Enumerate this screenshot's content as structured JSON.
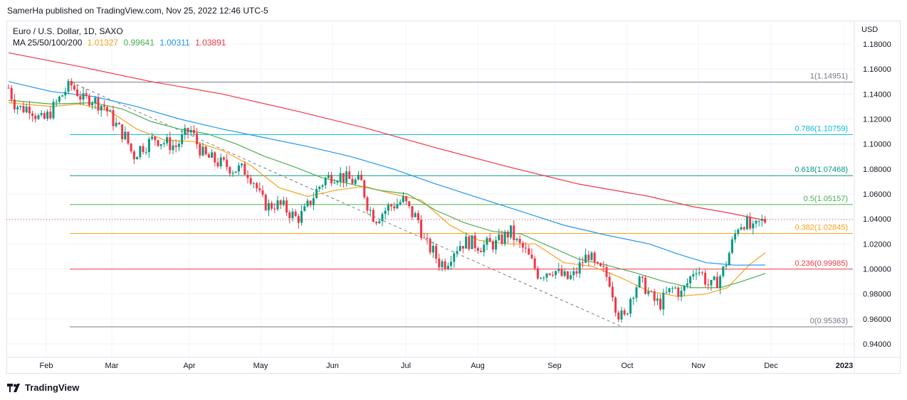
{
  "header": {
    "text": "SamerHa published on TradingView.com, Nov 25, 2022 12:46 UTC-5"
  },
  "legend": {
    "symbol": "Euro / U.S. Dollar, 1D, SAXO",
    "ma_label": "MA 25/50/100/200",
    "ma_values": [
      {
        "value": "1.01327",
        "color": "#f7a21b"
      },
      {
        "value": "0.99641",
        "color": "#4caf50"
      },
      {
        "value": "1.00311",
        "color": "#2196f3"
      },
      {
        "value": "1.03891",
        "color": "#f23645"
      }
    ]
  },
  "footer": {
    "brand": "TradingView"
  },
  "chart_data": {
    "type": "candlestick",
    "title": "Euro / U.S. Dollar, 1D, SAXO",
    "currency": "USD",
    "ylim": [
      0.93,
      1.19
    ],
    "y_ticks": [
      "1.18000",
      "1.16000",
      "1.14000",
      "1.12000",
      "1.10000",
      "1.08000",
      "1.06000",
      "1.04000",
      "1.02000",
      "1.00000",
      "0.98000",
      "0.96000",
      "0.94000"
    ],
    "x_ticks": [
      "Feb",
      "Mar",
      "Apr",
      "May",
      "Jun",
      "Jul",
      "Aug",
      "Sep",
      "Oct",
      "Nov",
      "Dec",
      "2023"
    ],
    "last_price": 1.0395,
    "fib_levels": [
      {
        "label": "1(1.14951)",
        "value": 1.14951,
        "color": "#787b86"
      },
      {
        "label": "0.786(1.10759)",
        "value": 1.10759,
        "color": "#00bcd4"
      },
      {
        "label": "0.618(1.07468)",
        "value": 1.07468,
        "color": "#089981"
      },
      {
        "label": "0.5(1.05157)",
        "value": 1.05157,
        "color": "#4caf50"
      },
      {
        "label": "0.382(1.02845)",
        "value": 1.02845,
        "color": "#f7a21b"
      },
      {
        "label": "0.236(0.99985)",
        "value": 0.99985,
        "color": "#f23645"
      },
      {
        "label": "0(0.95363)",
        "value": 0.95363,
        "color": "#787b86"
      }
    ],
    "price_path": [
      [
        0,
        1.145
      ],
      [
        8,
        1.133
      ],
      [
        18,
        1.128
      ],
      [
        30,
        1.13
      ],
      [
        40,
        1.122
      ],
      [
        48,
        1.118
      ],
      [
        58,
        1.125
      ],
      [
        70,
        1.135
      ],
      [
        80,
        1.143
      ],
      [
        88,
        1.147
      ],
      [
        96,
        1.142
      ],
      [
        105,
        1.135
      ],
      [
        115,
        1.137
      ],
      [
        125,
        1.133
      ],
      [
        135,
        1.13
      ],
      [
        145,
        1.12
      ],
      [
        155,
        1.112
      ],
      [
        165,
        1.105
      ],
      [
        175,
        1.09
      ],
      [
        185,
        1.097
      ],
      [
        195,
        1.1
      ],
      [
        205,
        1.105
      ],
      [
        215,
        1.102
      ],
      [
        225,
        1.1
      ],
      [
        235,
        1.098
      ],
      [
        245,
        1.105
      ],
      [
        255,
        1.112
      ],
      [
        265,
        1.1
      ],
      [
        275,
        1.09
      ],
      [
        285,
        1.088
      ],
      [
        295,
        1.085
      ],
      [
        305,
        1.083
      ],
      [
        315,
        1.08
      ],
      [
        325,
        1.08
      ],
      [
        335,
        1.078
      ],
      [
        345,
        1.07
      ],
      [
        355,
        1.055
      ],
      [
        365,
        1.05
      ],
      [
        375,
        1.052
      ],
      [
        385,
        1.05
      ],
      [
        395,
        1.045
      ],
      [
        405,
        1.04
      ],
      [
        415,
        1.045
      ],
      [
        425,
        1.055
      ],
      [
        435,
        1.065
      ],
      [
        445,
        1.072
      ],
      [
        455,
        1.075
      ],
      [
        465,
        1.075
      ],
      [
        475,
        1.072
      ],
      [
        485,
        1.07
      ],
      [
        495,
        1.07
      ],
      [
        505,
        1.05
      ],
      [
        515,
        1.04
      ],
      [
        525,
        1.045
      ],
      [
        535,
        1.05
      ],
      [
        545,
        1.052
      ],
      [
        555,
        1.055
      ],
      [
        565,
        1.045
      ],
      [
        575,
        1.04
      ],
      [
        585,
        1.02
      ],
      [
        595,
        1.015
      ],
      [
        605,
        1.005
      ],
      [
        615,
        1.005
      ],
      [
        625,
        1.015
      ],
      [
        635,
        1.02
      ],
      [
        645,
        1.022
      ],
      [
        655,
        1.02
      ],
      [
        665,
        1.018
      ],
      [
        675,
        1.02
      ],
      [
        685,
        1.02
      ],
      [
        695,
        1.025
      ],
      [
        705,
        1.03
      ],
      [
        715,
        1.02
      ],
      [
        725,
        1.015
      ],
      [
        735,
        1.005
      ],
      [
        745,
        0.995
      ],
      [
        755,
        0.998
      ],
      [
        765,
        1.0
      ],
      [
        775,
        0.995
      ],
      [
        785,
        0.992
      ],
      [
        795,
        0.995
      ],
      [
        805,
        1.005
      ],
      [
        815,
        1.012
      ],
      [
        825,
        1.0
      ],
      [
        835,
        0.998
      ],
      [
        845,
        0.99
      ],
      [
        855,
        0.965
      ],
      [
        865,
        0.96
      ],
      [
        875,
        0.98
      ],
      [
        885,
        0.99
      ],
      [
        895,
        0.985
      ],
      [
        905,
        0.975
      ],
      [
        915,
        0.972
      ],
      [
        925,
        0.98
      ],
      [
        935,
        0.985
      ],
      [
        945,
        0.98
      ],
      [
        955,
        0.99
      ],
      [
        965,
        1.002
      ],
      [
        975,
        0.995
      ],
      [
        985,
        0.985
      ],
      [
        995,
        0.99
      ],
      [
        1005,
        1.0
      ],
      [
        1015,
        1.018
      ],
      [
        1025,
        1.035
      ],
      [
        1035,
        1.038
      ],
      [
        1045,
        1.03
      ],
      [
        1055,
        1.037
      ],
      [
        1065,
        1.0395
      ]
    ],
    "series": [
      {
        "name": "MA 25",
        "color": "#f7a21b",
        "values": [
          [
            0,
            1.133
          ],
          [
            60,
            1.13
          ],
          [
            100,
            1.132
          ],
          [
            140,
            1.127
          ],
          [
            180,
            1.112
          ],
          [
            220,
            1.103
          ],
          [
            260,
            1.102
          ],
          [
            300,
            1.095
          ],
          [
            340,
            1.083
          ],
          [
            380,
            1.065
          ],
          [
            420,
            1.058
          ],
          [
            460,
            1.063
          ],
          [
            500,
            1.066
          ],
          [
            540,
            1.06
          ],
          [
            580,
            1.055
          ],
          [
            620,
            1.035
          ],
          [
            660,
            1.023
          ],
          [
            700,
            1.02
          ],
          [
            740,
            1.02
          ],
          [
            780,
            1.005
          ],
          [
            820,
            1.002
          ],
          [
            860,
            0.993
          ],
          [
            900,
            0.982
          ],
          [
            940,
            0.978
          ],
          [
            980,
            0.98
          ],
          [
            1010,
            0.985
          ],
          [
            1040,
            1.003
          ],
          [
            1063,
            1.013
          ]
        ]
      },
      {
        "name": "MA 50",
        "color": "#4caf50",
        "values": [
          [
            0,
            1.135
          ],
          [
            60,
            1.132
          ],
          [
            120,
            1.133
          ],
          [
            160,
            1.128
          ],
          [
            200,
            1.118
          ],
          [
            240,
            1.112
          ],
          [
            280,
            1.108
          ],
          [
            320,
            1.1
          ],
          [
            360,
            1.09
          ],
          [
            400,
            1.082
          ],
          [
            440,
            1.073
          ],
          [
            480,
            1.068
          ],
          [
            520,
            1.063
          ],
          [
            560,
            1.06
          ],
          [
            600,
            1.047
          ],
          [
            640,
            1.037
          ],
          [
            680,
            1.03
          ],
          [
            720,
            1.028
          ],
          [
            760,
            1.018
          ],
          [
            800,
            1.008
          ],
          [
            840,
            1.003
          ],
          [
            880,
            0.997
          ],
          [
            920,
            0.99
          ],
          [
            960,
            0.985
          ],
          [
            1000,
            0.985
          ],
          [
            1030,
            0.99
          ],
          [
            1063,
            0.99641
          ]
        ]
      },
      {
        "name": "MA 100",
        "color": "#2196f3",
        "values": [
          [
            0,
            1.15
          ],
          [
            60,
            1.142
          ],
          [
            120,
            1.138
          ],
          [
            180,
            1.13
          ],
          [
            240,
            1.12
          ],
          [
            300,
            1.112
          ],
          [
            360,
            1.105
          ],
          [
            420,
            1.098
          ],
          [
            480,
            1.09
          ],
          [
            540,
            1.08
          ],
          [
            600,
            1.068
          ],
          [
            660,
            1.057
          ],
          [
            720,
            1.046
          ],
          [
            780,
            1.035
          ],
          [
            840,
            1.027
          ],
          [
            900,
            1.02
          ],
          [
            940,
            1.012
          ],
          [
            980,
            1.005
          ],
          [
            1020,
            1.003
          ],
          [
            1063,
            1.00311
          ]
        ]
      },
      {
        "name": "MA 200",
        "color": "#f23645",
        "values": [
          [
            0,
            1.173
          ],
          [
            100,
            1.162
          ],
          [
            200,
            1.15
          ],
          [
            300,
            1.14
          ],
          [
            400,
            1.127
          ],
          [
            500,
            1.113
          ],
          [
            600,
            1.097
          ],
          [
            700,
            1.082
          ],
          [
            800,
            1.068
          ],
          [
            900,
            1.058
          ],
          [
            960,
            1.05
          ],
          [
            1010,
            1.045
          ],
          [
            1063,
            1.03891
          ]
        ]
      }
    ],
    "trendline": {
      "from": [
        88,
        1.1495
      ],
      "to": [
        862,
        0.9536
      ]
    }
  }
}
